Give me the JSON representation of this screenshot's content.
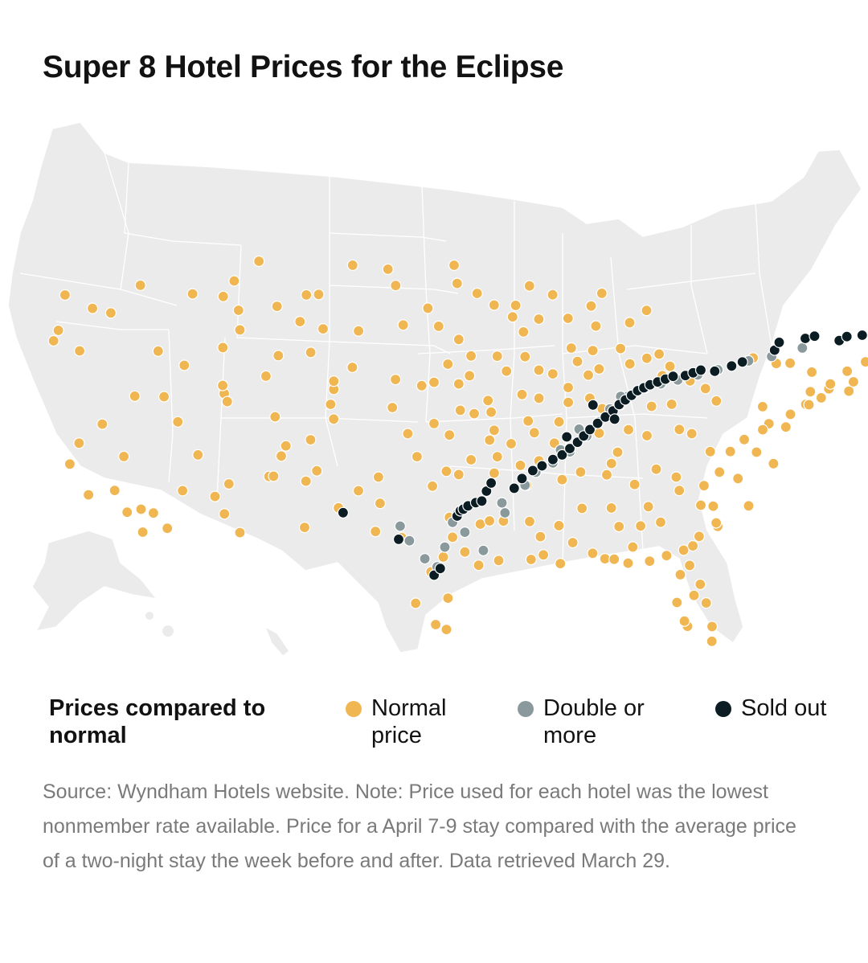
{
  "title": "Super 8 Hotel Prices for the Eclipse",
  "legend": {
    "title": "Prices compared to normal",
    "items": [
      {
        "key": "normal",
        "label": "Normal price",
        "color": "#efb652"
      },
      {
        "key": "double",
        "label": "Double or more",
        "color": "#8a999c"
      },
      {
        "key": "sold",
        "label": "Sold out",
        "color": "#0b1c22"
      }
    ]
  },
  "source": "Source: Wyndham Hotels website. Note: Price used for each hotel was the lowest nonmember rate available. Price for a April 7-9 stay compared with the average price of a two-night stay the week before and after. Data retrieved March 29.",
  "map": {
    "land_color": "#ebebeb",
    "border_color": "#ffffff",
    "hotels_normal": [
      [
        -122.7,
        45.5
      ],
      [
        -122.3,
        47.6
      ],
      [
        -123.0,
        44.9
      ],
      [
        -121.3,
        44.1
      ],
      [
        -117.4,
        47.7
      ],
      [
        -119.3,
        46.2
      ],
      [
        -120.5,
        46.6
      ],
      [
        -116.2,
        43.6
      ],
      [
        -114.5,
        42.6
      ],
      [
        -112.0,
        43.5
      ],
      [
        -111.9,
        40.7
      ],
      [
        -112.0,
        41.2
      ],
      [
        -113.6,
        37.1
      ],
      [
        -111.7,
        40.2
      ],
      [
        -108.6,
        39.1
      ],
      [
        -106.3,
        37.6
      ],
      [
        -104.8,
        38.8
      ],
      [
        -105.0,
        39.7
      ],
      [
        -104.8,
        40.6
      ],
      [
        -107.9,
        37.3
      ],
      [
        -119.8,
        39.5
      ],
      [
        -115.8,
        40.8
      ],
      [
        -117.7,
        41.0
      ],
      [
        -114.9,
        39.2
      ],
      [
        -118.4,
        37.4
      ],
      [
        -121.3,
        38.5
      ],
      [
        -121.9,
        37.3
      ],
      [
        -120.7,
        35.3
      ],
      [
        -119.0,
        35.4
      ],
      [
        -118.2,
        34.0
      ],
      [
        -117.2,
        32.7
      ],
      [
        -116.5,
        33.8
      ],
      [
        -117.3,
        34.1
      ],
      [
        -115.6,
        32.8
      ],
      [
        -114.6,
        35.0
      ],
      [
        -111.9,
        33.4
      ],
      [
        -110.9,
        32.2
      ],
      [
        -111.6,
        35.2
      ],
      [
        -109.0,
        35.5
      ],
      [
        -112.5,
        34.5
      ],
      [
        -106.6,
        35.1
      ],
      [
        -108.2,
        36.7
      ],
      [
        -106.7,
        32.3
      ],
      [
        -104.5,
        33.4
      ],
      [
        -103.2,
        34.4
      ],
      [
        -108.7,
        35.5
      ],
      [
        -105.9,
        35.7
      ],
      [
        -101.9,
        35.2
      ],
      [
        -101.8,
        33.6
      ],
      [
        -102.1,
        31.9
      ],
      [
        -100.4,
        31.5
      ],
      [
        -98.5,
        29.4
      ],
      [
        -97.7,
        30.3
      ],
      [
        -97.3,
        32.7
      ],
      [
        -96.8,
        32.8
      ],
      [
        -95.4,
        29.8
      ],
      [
        -94.1,
        30.1
      ],
      [
        -97.4,
        27.8
      ],
      [
        -97.5,
        25.9
      ],
      [
        -98.2,
        26.2
      ],
      [
        -99.5,
        27.5
      ],
      [
        -96.3,
        30.6
      ],
      [
        -97.1,
        31.5
      ],
      [
        -95.3,
        32.3
      ],
      [
        -94.7,
        32.5
      ],
      [
        -101.3,
        47.8
      ],
      [
        -100.8,
        46.8
      ],
      [
        -96.8,
        46.9
      ],
      [
        -98.7,
        45.4
      ],
      [
        -96.7,
        43.5
      ],
      [
        -103.2,
        44.1
      ],
      [
        -100.3,
        44.4
      ],
      [
        -98.0,
        44.3
      ],
      [
        -103.6,
        48.1
      ],
      [
        -97.0,
        48.0
      ],
      [
        -106.6,
        46.4
      ],
      [
        -108.5,
        45.8
      ],
      [
        -111.0,
        45.7
      ],
      [
        -112.0,
        46.6
      ],
      [
        -114.0,
        46.9
      ],
      [
        -109.7,
        48.6
      ],
      [
        -111.3,
        47.5
      ],
      [
        -105.8,
        46.4
      ],
      [
        -104.8,
        41.1
      ],
      [
        -106.3,
        42.9
      ],
      [
        -108.4,
        42.8
      ],
      [
        -109.2,
        41.6
      ],
      [
        -110.9,
        44.5
      ],
      [
        -107.0,
        44.8
      ],
      [
        -105.5,
        44.3
      ],
      [
        -96.0,
        41.3
      ],
      [
        -96.7,
        40.8
      ],
      [
        -98.3,
        40.9
      ],
      [
        -100.8,
        41.1
      ],
      [
        -103.6,
        41.9
      ],
      [
        -99.1,
        40.7
      ],
      [
        -97.4,
        42.0
      ],
      [
        -95.9,
        42.5
      ],
      [
        -93.6,
        41.6
      ],
      [
        -91.5,
        41.7
      ],
      [
        -90.6,
        41.5
      ],
      [
        -92.4,
        42.5
      ],
      [
        -94.2,
        42.5
      ],
      [
        -93.2,
        44.9
      ],
      [
        -92.5,
        44.0
      ],
      [
        -94.4,
        45.6
      ],
      [
        -92.1,
        46.8
      ],
      [
        -95.5,
        46.3
      ],
      [
        -93.0,
        45.6
      ],
      [
        -91.5,
        44.8
      ],
      [
        -89.4,
        43.1
      ],
      [
        -88.0,
        43.0
      ],
      [
        -87.8,
        44.5
      ],
      [
        -89.6,
        44.9
      ],
      [
        -90.6,
        46.3
      ],
      [
        -88.1,
        45.7
      ],
      [
        -87.4,
        46.5
      ],
      [
        -84.5,
        45.6
      ],
      [
        -85.6,
        44.8
      ],
      [
        -84.5,
        42.7
      ],
      [
        -83.0,
        42.3
      ],
      [
        -85.6,
        42.3
      ],
      [
        -83.7,
        43.0
      ],
      [
        -86.2,
        43.2
      ],
      [
        -82.9,
        40.0
      ],
      [
        -84.2,
        39.8
      ],
      [
        -81.7,
        41.5
      ],
      [
        -83.5,
        41.7
      ],
      [
        -80.7,
        41.1
      ],
      [
        -82.4,
        38.5
      ],
      [
        -86.2,
        39.8
      ],
      [
        -87.6,
        41.9
      ],
      [
        -88.3,
        41.5
      ],
      [
        -89.0,
        42.3
      ],
      [
        -89.6,
        40.7
      ],
      [
        -88.2,
        40.1
      ],
      [
        -89.6,
        39.8
      ],
      [
        -90.2,
        38.6
      ],
      [
        -91.5,
        40.0
      ],
      [
        -87.4,
        39.5
      ],
      [
        -87.6,
        38.0
      ],
      [
        -85.7,
        38.3
      ],
      [
        -84.5,
        38.0
      ],
      [
        -86.4,
        36.9
      ],
      [
        -83.9,
        36.0
      ],
      [
        -86.8,
        36.2
      ],
      [
        -85.3,
        35.0
      ],
      [
        -90.0,
        35.1
      ],
      [
        -88.8,
        35.6
      ],
      [
        -87.1,
        35.5
      ],
      [
        -84.4,
        33.7
      ],
      [
        -83.6,
        32.8
      ],
      [
        -81.1,
        32.1
      ],
      [
        -84.9,
        32.5
      ],
      [
        -86.8,
        33.5
      ],
      [
        -86.3,
        32.4
      ],
      [
        -88.0,
        30.7
      ],
      [
        -85.4,
        31.2
      ],
      [
        -88.7,
        33.4
      ],
      [
        -90.2,
        32.3
      ],
      [
        -89.3,
        31.3
      ],
      [
        -90.1,
        30.0
      ],
      [
        -91.2,
        30.5
      ],
      [
        -92.0,
        30.2
      ],
      [
        -93.8,
        32.5
      ],
      [
        -92.1,
        32.5
      ],
      [
        -91.4,
        31.6
      ],
      [
        -94.2,
        36.4
      ],
      [
        -92.3,
        34.7
      ],
      [
        -94.4,
        35.4
      ],
      [
        -92.7,
        35.9
      ],
      [
        -91.5,
        36.2
      ],
      [
        -97.5,
        35.5
      ],
      [
        -95.9,
        36.2
      ],
      [
        -98.4,
        34.6
      ],
      [
        -96.7,
        35.3
      ],
      [
        -99.4,
        36.4
      ],
      [
        -97.3,
        37.7
      ],
      [
        -95.7,
        39.0
      ],
      [
        -94.6,
        39.1
      ],
      [
        -98.3,
        38.4
      ],
      [
        -100.0,
        37.8
      ],
      [
        -101.0,
        39.4
      ],
      [
        -96.6,
        39.2
      ],
      [
        -94.7,
        37.4
      ],
      [
        -93.3,
        37.2
      ],
      [
        -92.2,
        38.6
      ],
      [
        -94.4,
        38.0
      ],
      [
        -90.5,
        37.3
      ],
      [
        -91.8,
        37.9
      ],
      [
        -92.6,
        40.2
      ],
      [
        -94.8,
        39.8
      ],
      [
        -80.8,
        35.2
      ],
      [
        -78.6,
        35.8
      ],
      [
        -79.8,
        36.1
      ],
      [
        -77.9,
        34.2
      ],
      [
        -80.2,
        34.0
      ],
      [
        -81.0,
        34.0
      ],
      [
        -79.9,
        32.8
      ],
      [
        -82.4,
        34.8
      ],
      [
        -80.0,
        33.0
      ],
      [
        -82.6,
        35.6
      ],
      [
        -77.4,
        37.5
      ],
      [
        -76.3,
        36.9
      ],
      [
        -79.1,
        37.4
      ],
      [
        -78.2,
        38.2
      ],
      [
        -80.4,
        37.3
      ],
      [
        -81.6,
        38.3
      ],
      [
        -80.0,
        40.4
      ],
      [
        -77.0,
        40.3
      ],
      [
        -75.2,
        40.0
      ],
      [
        -76.6,
        39.3
      ],
      [
        -77.0,
        38.9
      ],
      [
        -75.5,
        39.2
      ],
      [
        -74.2,
        40.7
      ],
      [
        -73.9,
        41.5
      ],
      [
        -74.0,
        40.7
      ],
      [
        -73.2,
        41.2
      ],
      [
        -72.7,
        41.8
      ],
      [
        -71.4,
        41.8
      ],
      [
        -71.1,
        42.4
      ],
      [
        -72.6,
        42.1
      ],
      [
        -73.8,
        42.7
      ],
      [
        -76.1,
        43.0
      ],
      [
        -77.6,
        43.2
      ],
      [
        -75.2,
        43.1
      ],
      [
        -71.5,
        43.0
      ],
      [
        -70.3,
        43.7
      ],
      [
        -69.8,
        44.3
      ],
      [
        -68.8,
        44.8
      ],
      [
        -81.7,
        30.3
      ],
      [
        -82.3,
        29.7
      ],
      [
        -81.4,
        28.5
      ],
      [
        -82.5,
        28.0
      ],
      [
        -80.2,
        26.7
      ],
      [
        -80.2,
        25.8
      ],
      [
        -81.8,
        26.6
      ],
      [
        -84.3,
        30.4
      ],
      [
        -87.2,
        30.4
      ],
      [
        -86.6,
        30.4
      ],
      [
        -85.7,
        30.2
      ],
      [
        -80.6,
        28.1
      ],
      [
        -81.0,
        29.2
      ],
      [
        -82.0,
        26.9
      ],
      [
        -83.2,
        30.8
      ],
      [
        -82.1,
        31.2
      ],
      [
        -81.5,
        31.5
      ]
    ],
    "hotels_double": [
      [
        -96.8,
        32.9
      ],
      [
        -97.1,
        32.4
      ],
      [
        -96.3,
        31.8
      ],
      [
        -97.6,
        30.9
      ],
      [
        -98.1,
        29.7
      ],
      [
        -98.9,
        30.2
      ],
      [
        -99.9,
        31.3
      ],
      [
        -100.5,
        32.2
      ],
      [
        -95.1,
        30.7
      ],
      [
        -93.7,
        33.0
      ],
      [
        -92.4,
        34.7
      ],
      [
        -91.7,
        35.5
      ],
      [
        -90.6,
        36.1
      ],
      [
        -89.5,
        36.8
      ],
      [
        -88.4,
        37.8
      ],
      [
        -87.6,
        38.7
      ],
      [
        -86.9,
        39.5
      ],
      [
        -85.8,
        40.3
      ],
      [
        -84.6,
        40.9
      ],
      [
        -83.6,
        41.2
      ],
      [
        -82.5,
        41.5
      ],
      [
        -81.2,
        41.9
      ],
      [
        -79.9,
        42.3
      ],
      [
        -77.9,
        43.0
      ],
      [
        -76.4,
        43.4
      ],
      [
        -74.4,
        44.1
      ],
      [
        -86.2,
        40.3
      ],
      [
        -88.9,
        38.2
      ],
      [
        -90.1,
        36.9
      ],
      [
        -93.9,
        33.6
      ]
    ],
    "hotels_sold": [
      [
        -96.8,
        32.78
      ],
      [
        -96.6,
        33.1
      ],
      [
        -96.4,
        33.2
      ],
      [
        -96.1,
        33.4
      ],
      [
        -95.6,
        33.6
      ],
      [
        -95.2,
        33.7
      ],
      [
        -94.9,
        34.3
      ],
      [
        -94.6,
        34.8
      ],
      [
        -93.1,
        34.5
      ],
      [
        -92.6,
        35.1
      ],
      [
        -91.9,
        35.6
      ],
      [
        -91.3,
        35.9
      ],
      [
        -90.6,
        36.3
      ],
      [
        -90.0,
        36.6
      ],
      [
        -89.5,
        37.0
      ],
      [
        -89.0,
        37.4
      ],
      [
        -88.6,
        37.8
      ],
      [
        -88.2,
        38.2
      ],
      [
        -87.7,
        38.6
      ],
      [
        -87.2,
        39.0
      ],
      [
        -86.7,
        39.4
      ],
      [
        -86.3,
        39.8
      ],
      [
        -85.9,
        40.1
      ],
      [
        -85.5,
        40.4
      ],
      [
        -85.1,
        40.7
      ],
      [
        -84.7,
        40.9
      ],
      [
        -84.3,
        41.1
      ],
      [
        -83.8,
        41.3
      ],
      [
        -83.3,
        41.5
      ],
      [
        -82.8,
        41.7
      ],
      [
        -82.0,
        41.8
      ],
      [
        -81.5,
        42.0
      ],
      [
        -81.0,
        42.2
      ],
      [
        -80.1,
        42.2
      ],
      [
        -79.0,
        42.6
      ],
      [
        -78.3,
        42.9
      ],
      [
        -76.2,
        43.8
      ],
      [
        -75.9,
        44.3
      ],
      [
        -74.2,
        44.7
      ],
      [
        -73.6,
        44.9
      ],
      [
        -72.0,
        44.8
      ],
      [
        -71.5,
        45.1
      ],
      [
        -70.5,
        45.3
      ],
      [
        -98.3,
        29.2
      ],
      [
        -97.9,
        29.6
      ],
      [
        -100.6,
        31.4
      ],
      [
        -104.2,
        33.1
      ],
      [
        -89.7,
        37.7
      ],
      [
        -88.0,
        39.7
      ],
      [
        -86.6,
        38.9
      ]
    ]
  }
}
